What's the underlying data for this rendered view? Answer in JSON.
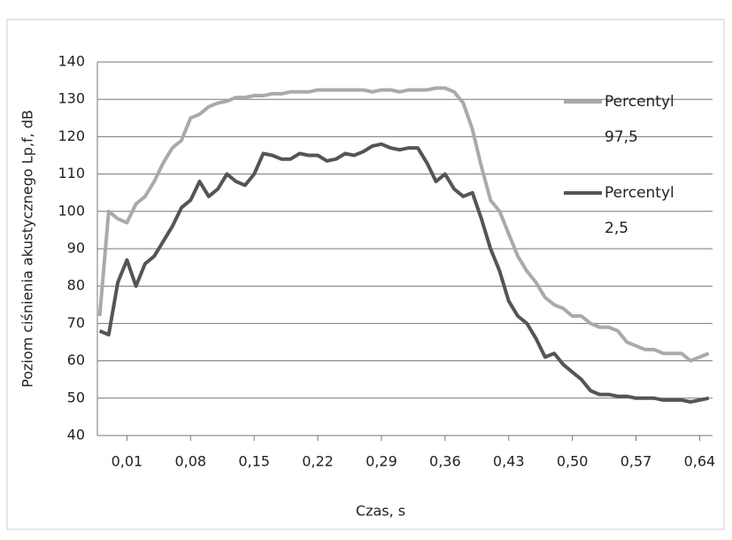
{
  "chart_data": {
    "type": "line",
    "x_label": "Czas, s",
    "y_label": "Poziom ciśnienia akustycznego Lp,f, dB",
    "x": [
      -0.02,
      -0.01,
      0.0,
      0.01,
      0.02,
      0.03,
      0.04,
      0.05,
      0.06,
      0.07,
      0.08,
      0.09,
      0.1,
      0.11,
      0.12,
      0.13,
      0.14,
      0.15,
      0.16,
      0.17,
      0.18,
      0.19,
      0.2,
      0.21,
      0.22,
      0.23,
      0.24,
      0.25,
      0.26,
      0.27,
      0.28,
      0.29,
      0.3,
      0.31,
      0.32,
      0.33,
      0.34,
      0.35,
      0.36,
      0.37,
      0.38,
      0.39,
      0.4,
      0.41,
      0.42,
      0.43,
      0.44,
      0.45,
      0.46,
      0.47,
      0.48,
      0.49,
      0.5,
      0.51,
      0.52,
      0.53,
      0.54,
      0.55,
      0.56,
      0.57,
      0.58,
      0.59,
      0.6,
      0.61,
      0.62,
      0.63,
      0.64,
      0.65
    ],
    "series": [
      {
        "name": "Percentyl 97,5",
        "color": "#aaaaaa",
        "values": [
          72,
          100,
          98,
          97,
          102,
          104,
          108,
          113,
          117,
          119,
          125,
          126,
          128,
          129,
          129.5,
          130.5,
          130.5,
          131,
          131,
          131.5,
          131.5,
          132,
          132,
          132,
          132.5,
          132.5,
          132.5,
          132.5,
          132.5,
          132.5,
          132,
          132.5,
          132.5,
          132,
          132.5,
          132.5,
          132.5,
          133,
          133,
          132,
          129,
          122,
          112,
          103,
          100,
          94,
          88,
          84,
          81,
          77,
          75,
          74,
          72,
          72,
          70,
          69,
          69,
          68,
          65,
          64,
          63,
          63,
          62,
          62,
          62,
          60,
          61,
          62
        ]
      },
      {
        "name": "Percentyl 2,5",
        "color": "#555555",
        "values": [
          68,
          67,
          81,
          87,
          80,
          86,
          88,
          92,
          96,
          101,
          103,
          108,
          104,
          106,
          110,
          108,
          107,
          110,
          115.5,
          115,
          114,
          114,
          115.5,
          115,
          115,
          113.5,
          114,
          115.5,
          115,
          116,
          117.5,
          118,
          117,
          116.5,
          117,
          117,
          113,
          108,
          110,
          106,
          104,
          105,
          98,
          90,
          84,
          76,
          72,
          70,
          66,
          61,
          62,
          59,
          57,
          55,
          52,
          51,
          51,
          50.5,
          50.5,
          50,
          50,
          50,
          49.5,
          49.5,
          49.5,
          49,
          49.5,
          50
        ]
      }
    ],
    "xlim": [
      -0.0225,
      0.6542
    ],
    "ylim": [
      40,
      140
    ],
    "xticks": [
      {
        "value": 0.01,
        "label": "0,01"
      },
      {
        "value": 0.08,
        "label": "0,08"
      },
      {
        "value": 0.15,
        "label": "0,15"
      },
      {
        "value": 0.22,
        "label": "0,22"
      },
      {
        "value": 0.29,
        "label": "0,29"
      },
      {
        "value": 0.36,
        "label": "0,36"
      },
      {
        "value": 0.43,
        "label": "0,43"
      },
      {
        "value": 0.5,
        "label": "0,50"
      },
      {
        "value": 0.57,
        "label": "0,57"
      },
      {
        "value": 0.64,
        "label": "0,64"
      }
    ],
    "yticks": [
      40,
      50,
      60,
      70,
      80,
      90,
      100,
      110,
      120,
      130,
      140
    ],
    "grid": true
  }
}
